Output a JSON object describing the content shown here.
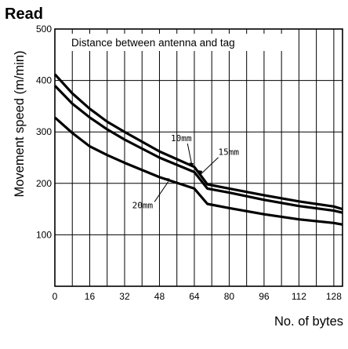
{
  "chart_data": {
    "type": "line",
    "title": "Read",
    "annotation": "Distance between antenna and tag",
    "xlabel": "No. of bytes",
    "ylabel": "Movement speed (m/min)",
    "xlim": [
      0,
      132
    ],
    "ylim": [
      0,
      500
    ],
    "x_ticks": [
      0,
      16,
      32,
      48,
      64,
      80,
      96,
      112,
      128
    ],
    "y_ticks": [
      100,
      200,
      300,
      400,
      500
    ],
    "grid": true,
    "series": [
      {
        "name": "10mm",
        "x": [
          0,
          8,
          16,
          24,
          32,
          48,
          64,
          70,
          80,
          96,
          112,
          128,
          132
        ],
        "y": [
          412,
          375,
          345,
          320,
          300,
          262,
          232,
          198,
          190,
          177,
          165,
          155,
          150
        ]
      },
      {
        "name": "15mm",
        "x": [
          0,
          8,
          16,
          24,
          32,
          48,
          64,
          70,
          80,
          96,
          112,
          128,
          132
        ],
        "y": [
          390,
          355,
          328,
          305,
          285,
          250,
          222,
          190,
          182,
          168,
          156,
          147,
          143
        ]
      },
      {
        "name": "20mm",
        "x": [
          0,
          8,
          16,
          24,
          32,
          48,
          64,
          70,
          80,
          96,
          112,
          128,
          132
        ],
        "y": [
          328,
          298,
          272,
          255,
          240,
          212,
          190,
          160,
          152,
          140,
          130,
          123,
          120
        ]
      }
    ]
  }
}
